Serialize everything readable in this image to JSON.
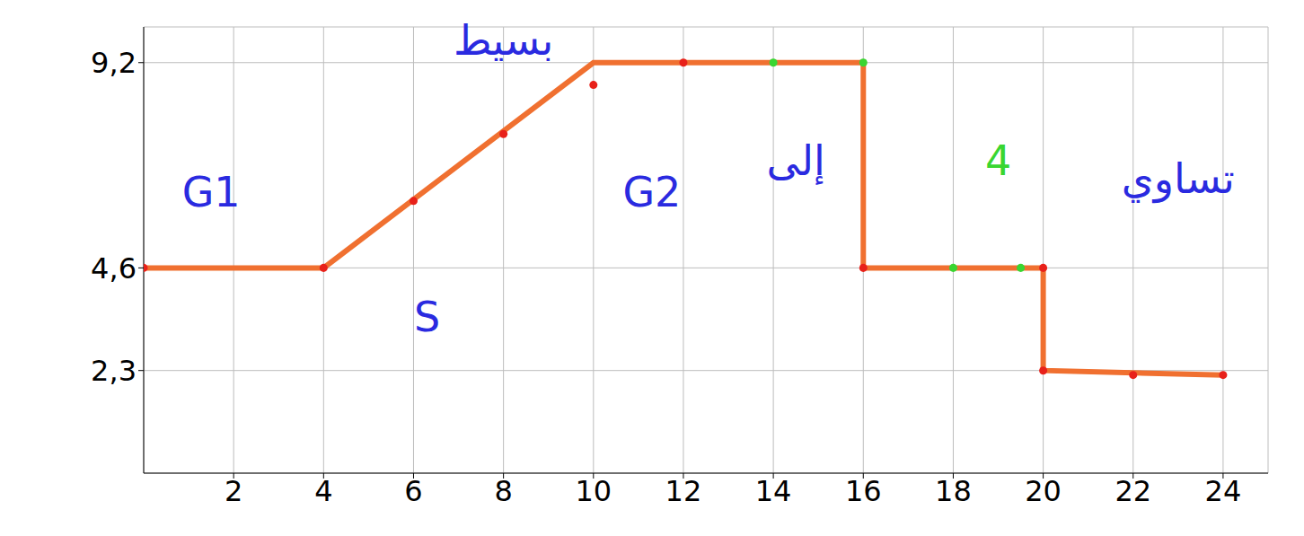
{
  "chart_data": {
    "type": "line",
    "xlim": [
      0,
      25
    ],
    "xticks": [
      2,
      4,
      6,
      8,
      10,
      12,
      14,
      16,
      18,
      20,
      22,
      24
    ],
    "ylim": [
      0,
      10
    ],
    "yticks": [
      {
        "value": 2.3,
        "label": "2,3"
      },
      {
        "value": 4.6,
        "label": "4,6"
      },
      {
        "value": 9.2,
        "label": "9,2"
      }
    ],
    "grid": true,
    "series": [
      {
        "type": "line",
        "color": "#f07030",
        "x": [
          0,
          4,
          10,
          16,
          16,
          20,
          20,
          24
        ],
        "values": [
          4.6,
          4.6,
          9.2,
          9.2,
          4.6,
          4.6,
          2.3,
          2.2
        ]
      },
      {
        "type": "scatter",
        "color": "#e8211a",
        "marker": "circle",
        "x": [
          0,
          4,
          6,
          8,
          10,
          12,
          16,
          20,
          20,
          22,
          24
        ],
        "values": [
          4.6,
          4.6,
          6.1,
          7.6,
          8.7,
          9.2,
          4.6,
          4.6,
          2.3,
          2.2,
          2.2
        ]
      },
      {
        "type": "scatter",
        "color": "#39d631",
        "marker": "circle",
        "x": [
          14,
          16,
          18,
          19.5
        ],
        "values": [
          9.2,
          9.2,
          4.6,
          4.6
        ]
      }
    ],
    "annotations": [
      {
        "text": "G1",
        "x": 1.5,
        "y": 6.3,
        "color": "#2a2ae0"
      },
      {
        "text": "S",
        "x": 6.3,
        "y": 3.5,
        "color": "#2a2ae0"
      },
      {
        "text": "G2",
        "x": 11.3,
        "y": 6.3,
        "color": "#2a2ae0"
      },
      {
        "text": "بسيط",
        "x": 8,
        "y": 9.7,
        "color": "#2a2ae0"
      },
      {
        "text": "إلى",
        "x": 14.5,
        "y": 7,
        "color": "#2a2ae0"
      },
      {
        "text": "4",
        "x": 19,
        "y": 7,
        "color": "#39d631"
      },
      {
        "text": "تساوي",
        "x": 23,
        "y": 6.6,
        "color": "#2a2ae0"
      }
    ]
  }
}
